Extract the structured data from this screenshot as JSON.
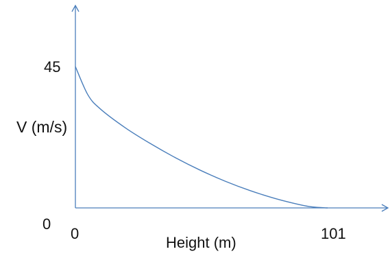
{
  "chart_data": {
    "type": "line",
    "title": "",
    "xlabel": "Height (m)",
    "ylabel": "V (m/s)",
    "xlim": [
      0,
      101
    ],
    "ylim": [
      0,
      45
    ],
    "x_tick_labels": [
      "0",
      "101"
    ],
    "y_tick_labels": [
      "45",
      "0"
    ],
    "grid": false,
    "legend": "none",
    "series": [
      {
        "x": [
          0,
          5,
          10,
          20,
          30,
          40,
          50,
          60,
          70,
          80,
          90,
          95,
          101
        ],
        "values": [
          45,
          36,
          31.5,
          25.5,
          20.5,
          16,
          12,
          8.5,
          5.5,
          3,
          1,
          0.3,
          0
        ],
        "color": "#4a7ebb"
      }
    ]
  }
}
